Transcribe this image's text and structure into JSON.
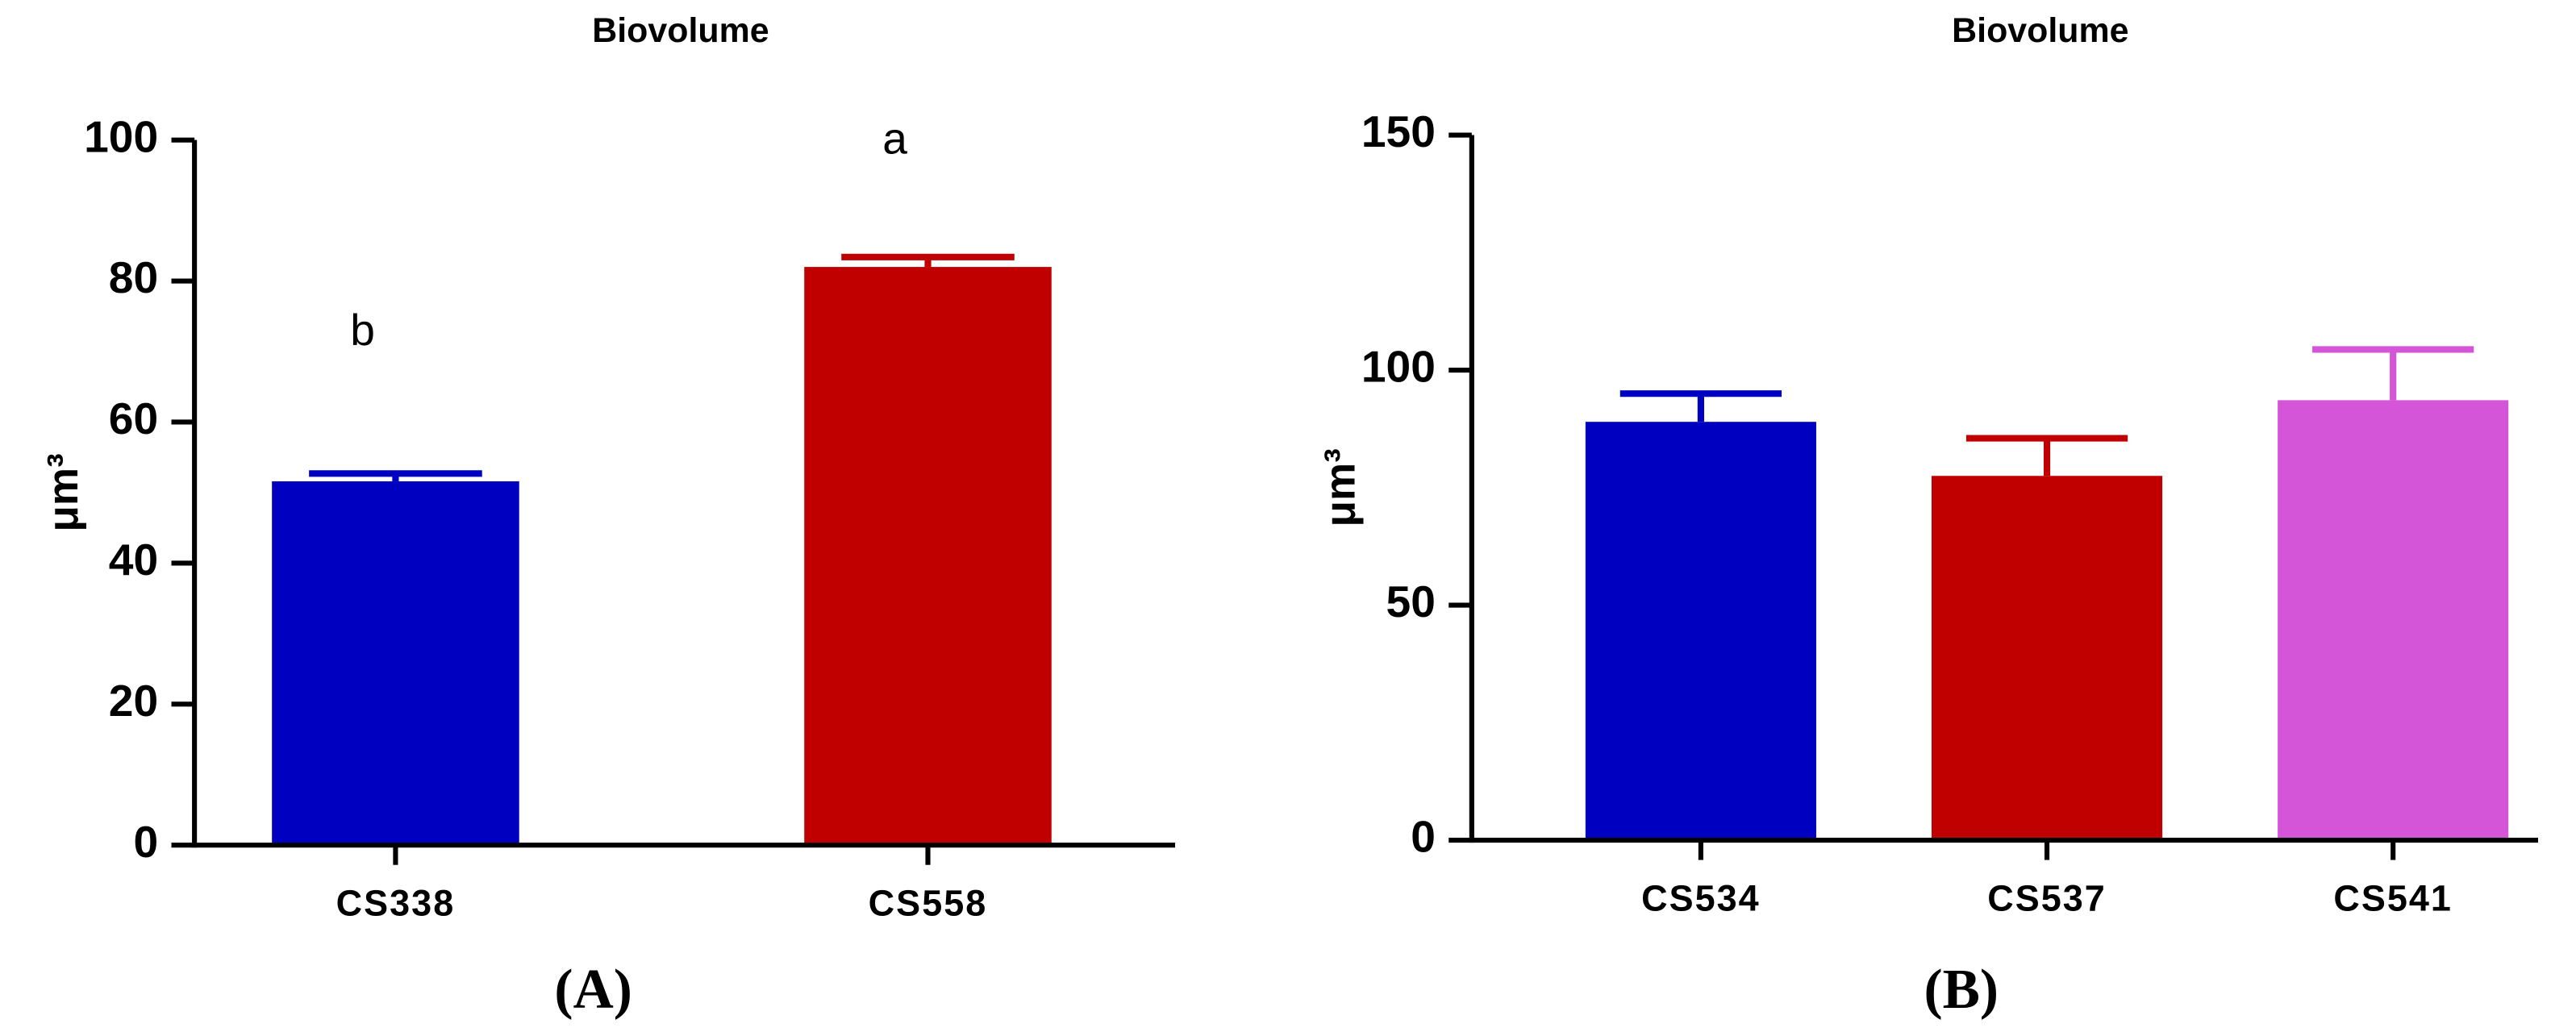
{
  "chart_data": [
    {
      "type": "bar",
      "title": "Biovolume",
      "y_label": "μm³",
      "panel_label": "(A)",
      "categories": [
        "CS338",
        "CS558"
      ],
      "values": [
        51.6,
        82.0
      ],
      "errors": [
        1.1,
        1.4
      ],
      "colors": [
        "#0000c0",
        "#c00000"
      ],
      "annotations": [
        "b",
        "a"
      ],
      "ylim": [
        0,
        100
      ],
      "yticks": [
        0,
        20,
        40,
        60,
        80,
        100
      ]
    },
    {
      "type": "bar",
      "title": "Biovolume",
      "y_label": "μm³",
      "panel_label": "(B)",
      "categories": [
        "CS534",
        "CS537",
        "CS541"
      ],
      "values": [
        89.0,
        77.5,
        93.6
      ],
      "errors": [
        6.0,
        8.0,
        10.8
      ],
      "colors": [
        "#0000c0",
        "#c00000",
        "#d455d8"
      ],
      "ylim": [
        0,
        150
      ],
      "yticks": [
        0,
        50,
        100,
        150
      ]
    }
  ]
}
